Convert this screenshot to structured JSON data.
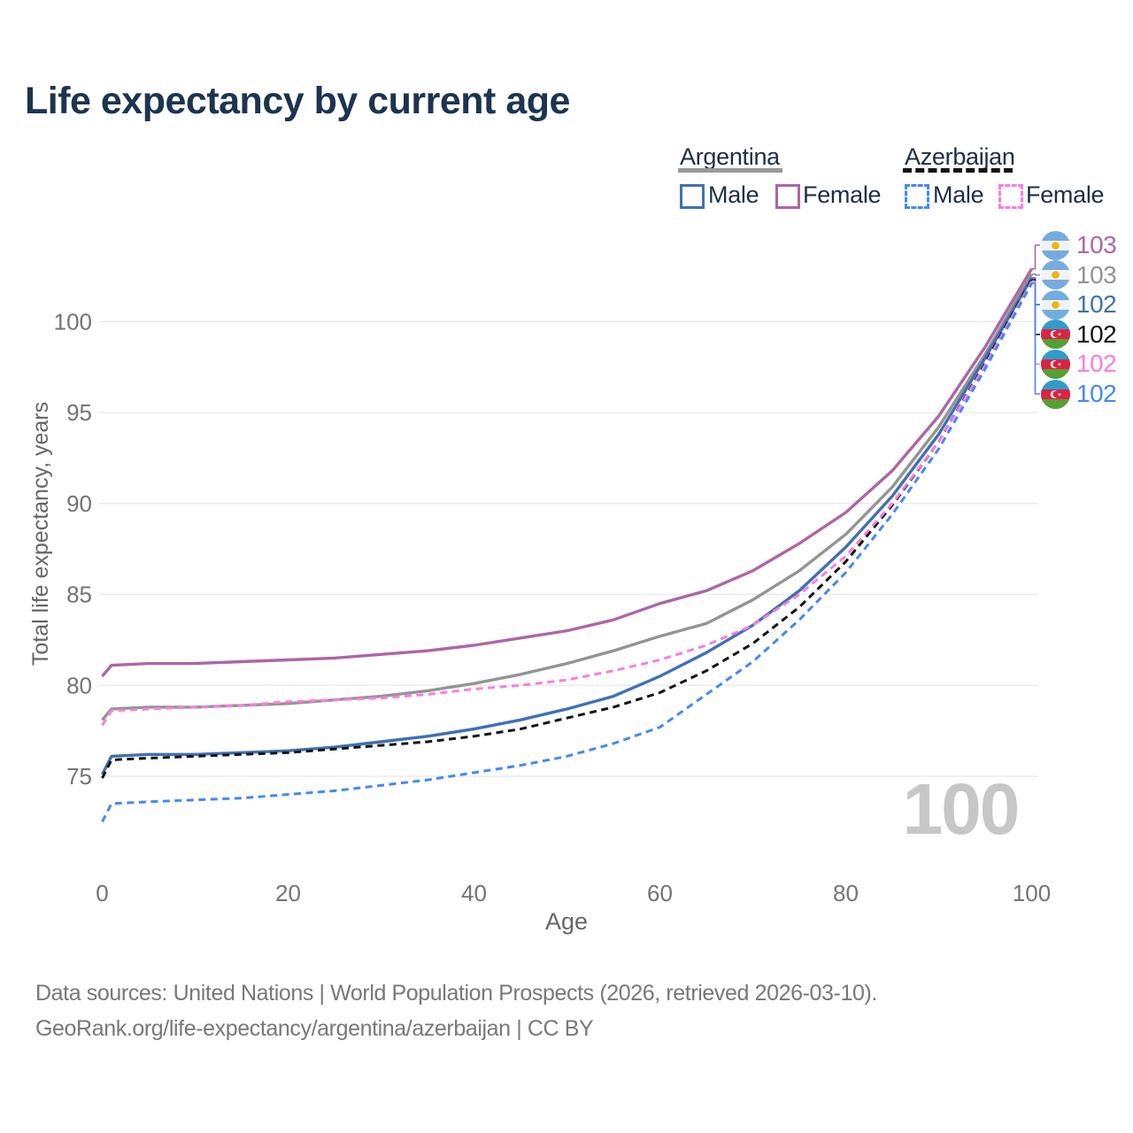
{
  "title": "Life expectancy by current age",
  "legend": {
    "groups": [
      {
        "country": "Argentina",
        "line_style": "solid",
        "underline_color": "#999999",
        "items": [
          {
            "label": "Male",
            "color": "#4070b4"
          },
          {
            "label": "Female",
            "color": "#ad66a6"
          }
        ]
      },
      {
        "country": "Azerbaijan",
        "line_style": "dashed",
        "underline_color": "#141414",
        "items": [
          {
            "label": "Male",
            "color": "#4489f6"
          },
          {
            "label": "Female",
            "color": "#fb7de2"
          }
        ]
      }
    ]
  },
  "chart_data": {
    "type": "line",
    "title": "Life expectancy by current age",
    "xlabel": "Age",
    "ylabel": "Total life expectancy, years",
    "xlim": [
      0,
      100
    ],
    "ylim": [
      69,
      104.5
    ],
    "x_ticks": [
      0,
      20,
      40,
      60,
      80,
      100
    ],
    "y_ticks": [
      75,
      80,
      85,
      90,
      95,
      100
    ],
    "grid": "horizontal",
    "legend_position": "top-right",
    "watermark": "100",
    "x": [
      0,
      1,
      5,
      10,
      15,
      20,
      25,
      30,
      35,
      40,
      45,
      50,
      55,
      60,
      65,
      70,
      75,
      80,
      85,
      90,
      95,
      100
    ],
    "series": [
      {
        "name": "Argentina Female",
        "country": "Argentina",
        "sex": "Female",
        "color": "#ad66a6",
        "dash": "solid",
        "flag": "argentina",
        "end_label": "103",
        "values": [
          80.5,
          81.1,
          81.2,
          81.2,
          81.3,
          81.4,
          81.5,
          81.7,
          81.9,
          82.2,
          82.6,
          83.0,
          83.6,
          84.5,
          85.2,
          86.3,
          87.8,
          89.5,
          91.8,
          94.8,
          98.6,
          102.9
        ]
      },
      {
        "name": "Argentina Both sexes",
        "country": "Argentina",
        "sex": "Both",
        "color": "#949494",
        "dash": "solid",
        "flag": "argentina",
        "end_label": "103",
        "values": [
          78.1,
          78.7,
          78.8,
          78.8,
          78.9,
          79.0,
          79.2,
          79.4,
          79.7,
          80.1,
          80.6,
          81.2,
          81.9,
          82.7,
          83.4,
          84.7,
          86.3,
          88.3,
          90.9,
          94.2,
          98.2,
          102.6
        ]
      },
      {
        "name": "Argentina Male",
        "country": "Argentina",
        "sex": "Male",
        "color": "#4070b4",
        "dash": "solid",
        "flag": "argentina",
        "end_label": "102",
        "values": [
          75.1,
          76.1,
          76.2,
          76.2,
          76.3,
          76.4,
          76.6,
          76.9,
          77.2,
          77.6,
          78.1,
          78.7,
          79.4,
          80.5,
          81.8,
          83.3,
          85.2,
          87.6,
          90.4,
          93.8,
          98.0,
          102.4
        ]
      },
      {
        "name": "Azerbaijan Both sexes",
        "country": "Azerbaijan",
        "sex": "Both",
        "color": "#141414",
        "dash": "dashed",
        "flag": "azerbaijan",
        "end_label": "102",
        "values": [
          74.9,
          75.9,
          76.0,
          76.1,
          76.2,
          76.3,
          76.5,
          76.7,
          76.9,
          77.2,
          77.6,
          78.2,
          78.8,
          79.6,
          80.8,
          82.3,
          84.3,
          86.8,
          89.9,
          93.4,
          97.7,
          102.3
        ]
      },
      {
        "name": "Azerbaijan Female",
        "country": "Azerbaijan",
        "sex": "Female",
        "color": "#fb7de2",
        "dash": "dashed",
        "flag": "azerbaijan",
        "end_label": "102",
        "values": [
          77.8,
          78.6,
          78.7,
          78.8,
          78.9,
          79.1,
          79.2,
          79.3,
          79.5,
          79.8,
          80.0,
          80.3,
          80.8,
          81.4,
          82.2,
          83.3,
          85.0,
          87.1,
          90.0,
          93.4,
          97.6,
          102.2
        ]
      },
      {
        "name": "Azerbaijan Male",
        "country": "Azerbaijan",
        "sex": "Male",
        "color": "#4489f6",
        "dash": "dashed",
        "flag": "azerbaijan",
        "end_label": "102",
        "values": [
          72.5,
          73.5,
          73.6,
          73.7,
          73.8,
          74.0,
          74.2,
          74.5,
          74.8,
          75.2,
          75.6,
          76.1,
          76.8,
          77.7,
          79.5,
          81.3,
          83.6,
          86.2,
          89.4,
          93.0,
          97.4,
          102.1
        ]
      }
    ]
  },
  "footer": {
    "line1": "Data sources: United Nations | World Population Prospects (2026, retrieved 2026-03-10).",
    "line2": "GeoRank.org/life-expectancy/argentina/azerbaijan | CC BY"
  }
}
